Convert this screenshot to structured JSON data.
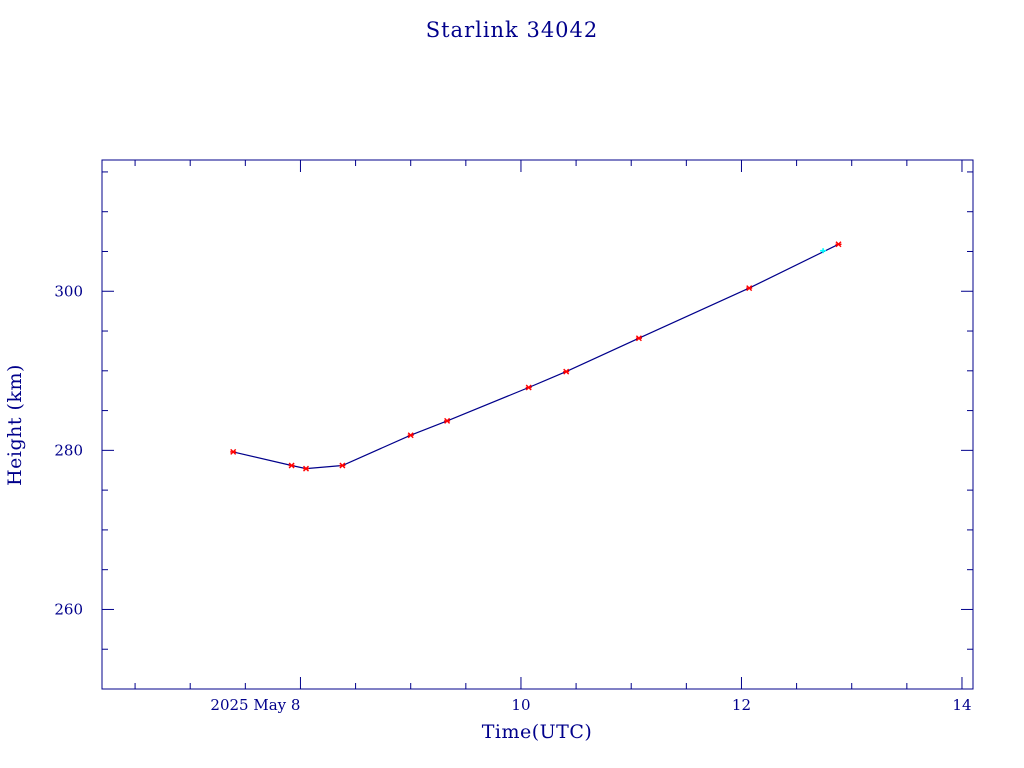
{
  "colors": {
    "text": "#00008b",
    "axis": "#00008b",
    "line": "#00008b",
    "marker": "#ff0000",
    "highlight_marker": "#00ffff"
  },
  "chart_data": {
    "type": "line",
    "title": "Starlink 34042",
    "xlabel": "Time(UTC)",
    "ylabel": "Height (km)",
    "x_unit": "days (May 2025)",
    "xlim": [
      6.2,
      14.1
    ],
    "ylim": [
      250,
      316.5
    ],
    "grid": false,
    "x_ticks": [
      {
        "value": 8,
        "label": "2025 May  8"
      },
      {
        "value": 10,
        "label": "10"
      },
      {
        "value": 12,
        "label": "12"
      },
      {
        "value": 14,
        "label": "14"
      }
    ],
    "y_ticks": [
      {
        "value": 260,
        "label": "260"
      },
      {
        "value": 280,
        "label": "280"
      },
      {
        "value": 300,
        "label": "300"
      }
    ],
    "x_minor_step": 0.5,
    "y_minor_step": 5,
    "series": [
      {
        "points": [
          {
            "x": 7.39,
            "y": 279.8
          },
          {
            "x": 7.92,
            "y": 278.1
          },
          {
            "x": 8.05,
            "y": 277.7
          },
          {
            "x": 8.38,
            "y": 278.1
          },
          {
            "x": 9.0,
            "y": 281.9
          },
          {
            "x": 9.33,
            "y": 283.7
          },
          {
            "x": 10.07,
            "y": 287.9
          },
          {
            "x": 10.41,
            "y": 289.9
          },
          {
            "x": 11.07,
            "y": 294.1
          },
          {
            "x": 12.07,
            "y": 300.4
          },
          {
            "x": 12.88,
            "y": 305.9
          }
        ],
        "highlight_point": {
          "x": 12.74,
          "y": 305.1
        }
      }
    ]
  }
}
